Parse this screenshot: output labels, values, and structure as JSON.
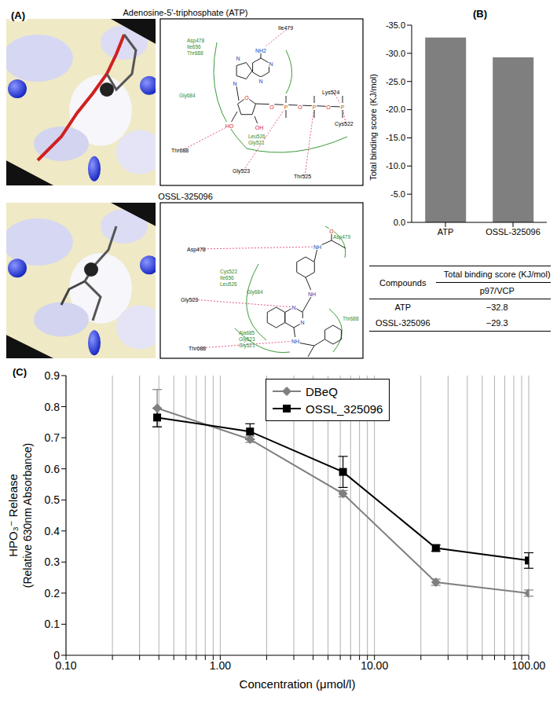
{
  "panel_labels": [
    "(A)",
    "(B)",
    "(C)"
  ],
  "panel_a": {
    "structures": [
      {
        "title": "Adenosine-5′-triphosphate (ATP)",
        "residues": [
          "Ile479",
          "Lys524",
          "Cys522",
          "Gly523",
          "Thr525",
          "Thr688"
        ],
        "contacts": [
          [
            "Asp478",
            "Ile656",
            "Thr688"
          ],
          [
            "Gly684"
          ],
          [
            "Leu526",
            "Gly521"
          ]
        ],
        "atoms": [
          "NH2",
          "N",
          "N",
          "N",
          "N",
          "O",
          "HO",
          "OH",
          "O",
          "P",
          "O",
          "P",
          "O",
          "P"
        ]
      },
      {
        "title": "OSSL-325096",
        "residues": [
          "Asp478",
          "Gly523",
          "Thr688"
        ],
        "contacts": [
          [
            "Asp479"
          ],
          [
            "Cys522",
            "Ile656",
            "Leu526"
          ],
          [
            "Gly684"
          ],
          [
            "Thr688"
          ],
          [
            "Ala685",
            "Gly523",
            "Gly521"
          ]
        ],
        "atoms": [
          "NH",
          "NH",
          "NH",
          "N",
          "N",
          "O"
        ]
      }
    ]
  },
  "chart_data": [
    {
      "type": "bar",
      "categories": [
        "ATP",
        "OSSL-325096"
      ],
      "values": [
        -32.8,
        -29.3
      ],
      "color": "#7f7f7f",
      "ylabel": "Total binding score (KJ/mol)",
      "ylim": [
        0,
        -35
      ],
      "yticks": [
        {
          "value": 0,
          "label": "0.0"
        },
        {
          "value": -5,
          "label": "-5.0"
        },
        {
          "value": -10,
          "label": "-10.0"
        },
        {
          "value": -15,
          "label": "-15.0"
        },
        {
          "value": -20,
          "label": "-20.0"
        },
        {
          "value": -25,
          "label": "-25.0"
        },
        {
          "value": -30,
          "label": "-30.0"
        },
        {
          "value": -35,
          "label": "-35.0"
        }
      ]
    },
    {
      "type": "line",
      "xlabel": "Concentration (μmol/l)",
      "ylabel": [
        "HPO₃⁻ Release",
        "(Relative 630nm Absorbance)"
      ],
      "log": "x",
      "xlim": [
        0.1,
        100
      ],
      "xticks": [
        {
          "value": 0.1,
          "label": "0.10"
        },
        {
          "value": 1,
          "label": "1.00"
        },
        {
          "value": 10,
          "label": "10.00"
        },
        {
          "value": 100,
          "label": "100.00"
        }
      ],
      "x_minor_ticks": [
        0.2,
        0.3,
        0.4,
        0.5,
        0.6,
        0.7,
        0.8,
        0.9,
        2,
        3,
        4,
        5,
        6,
        7,
        8,
        9,
        20,
        30,
        40,
        50,
        60,
        70,
        80,
        90
      ],
      "ylim": [
        0,
        0.9
      ],
      "yticks": [
        0,
        0.1,
        0.2,
        0.3,
        0.4,
        0.5,
        0.6,
        0.7,
        0.8,
        0.9
      ],
      "grid": "x",
      "legend": "top",
      "x": [
        0.39,
        1.56,
        6.25,
        25,
        100
      ],
      "series": [
        {
          "name": "DBeQ",
          "color": "#7f7f7f",
          "marker": "diamond",
          "values": [
            0.795,
            0.695,
            0.52,
            0.235,
            0.2
          ],
          "errors": [
            0.06,
            0.01,
            0.01,
            0.01,
            0.01
          ]
        },
        {
          "name": "OSSL_325096",
          "color": "#000000",
          "marker": "square",
          "values": [
            0.765,
            0.72,
            0.59,
            0.345,
            0.305
          ],
          "errors": [
            0.03,
            0.025,
            0.05,
            0.01,
            0.025
          ]
        }
      ]
    }
  ],
  "table": {
    "header": [
      "Compounds",
      "Total binding score (KJ/mol)"
    ],
    "subheader": "p97/VCP",
    "rows": [
      [
        "ATP",
        "−32.8"
      ],
      [
        "OSSL-325096",
        "−29.3"
      ]
    ]
  }
}
